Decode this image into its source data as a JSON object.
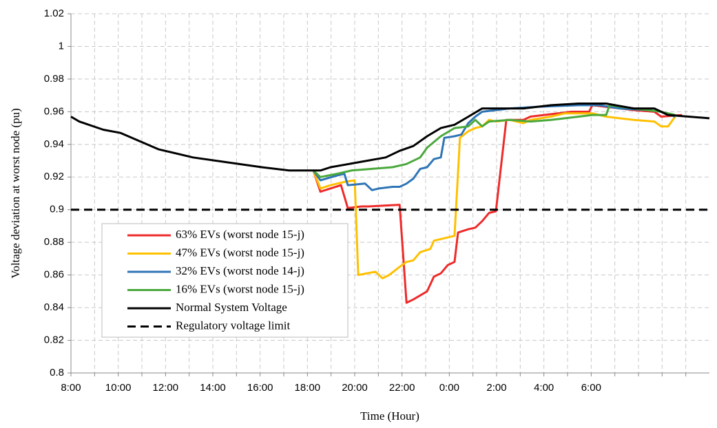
{
  "chart_data": {
    "type": "line",
    "xlabel": "Time (Hour)",
    "ylabel": "Voltage deviation at worst node (pu)",
    "xlim": [
      8,
      35
    ],
    "xticks": [
      {
        "value": 8,
        "label": "8:00"
      },
      {
        "value": 10,
        "label": "10:00"
      },
      {
        "value": 12,
        "label": "12:00"
      },
      {
        "value": 14,
        "label": "14:00"
      },
      {
        "value": 16,
        "label": "16:00"
      },
      {
        "value": 18,
        "label": "18:00"
      },
      {
        "value": 20,
        "label": "20:00"
      },
      {
        "value": 22,
        "label": "22:00"
      },
      {
        "value": 24,
        "label": "0:00"
      },
      {
        "value": 26,
        "label": "2:00"
      },
      {
        "value": 28,
        "label": "4:00"
      },
      {
        "value": 30,
        "label": "6:00"
      }
    ],
    "x_minor_ticks": [
      9,
      11,
      13,
      15,
      17,
      19,
      21,
      23,
      25,
      27,
      29,
      31,
      32,
      33,
      34
    ],
    "ylim": [
      0.8,
      1.02
    ],
    "yticks": [
      0.8,
      0.82,
      0.84,
      0.86,
      0.88,
      0.9,
      0.92,
      0.94,
      0.96,
      0.98,
      1,
      1.02
    ],
    "grid": true,
    "legend": "lower-left",
    "series": [
      {
        "name": "63% EVs (worst node 15-j)",
        "color": "#ee2a2a",
        "x": [
          18.25,
          18.55,
          19.42,
          19.71,
          20.29,
          20.58,
          21.9,
          22.19,
          22.48,
          23.06,
          23.35,
          23.64,
          23.93,
          24.22,
          24.37,
          24.8,
          25.1,
          25.39,
          25.68,
          25.97,
          26.41,
          27.14,
          27.43,
          28.01,
          29.18,
          29.91,
          30.05,
          30.63,
          31.8,
          32.67,
          32.96,
          33.84
        ],
        "values": [
          0.924,
          0.911,
          0.915,
          0.901,
          0.902,
          0.902,
          0.903,
          0.843,
          0.845,
          0.85,
          0.859,
          0.861,
          0.866,
          0.868,
          0.886,
          0.888,
          0.889,
          0.893,
          0.898,
          0.899,
          0.955,
          0.955,
          0.957,
          0.958,
          0.96,
          0.96,
          0.964,
          0.963,
          0.961,
          0.96,
          0.957,
          0.958
        ]
      },
      {
        "name": "47% EVs (worst node 15-j)",
        "color": "#ffc000",
        "x": [
          18.25,
          18.55,
          18.98,
          19.56,
          20.0,
          20.15,
          20.88,
          21.17,
          21.46,
          21.9,
          22.19,
          22.48,
          22.77,
          23.2,
          23.35,
          23.93,
          24.22,
          24.45,
          24.8,
          25.1,
          25.39,
          25.68,
          25.97,
          26.55,
          27.14,
          27.43,
          28.3,
          28.89,
          30.05,
          30.63,
          31.21,
          31.8,
          32.67,
          32.96,
          33.25,
          33.55
        ],
        "values": [
          0.924,
          0.913,
          0.915,
          0.917,
          0.918,
          0.86,
          0.862,
          0.858,
          0.86,
          0.865,
          0.868,
          0.869,
          0.874,
          0.876,
          0.881,
          0.883,
          0.884,
          0.944,
          0.948,
          0.95,
          0.951,
          0.955,
          0.954,
          0.955,
          0.953,
          0.955,
          0.957,
          0.959,
          0.959,
          0.957,
          0.956,
          0.955,
          0.954,
          0.951,
          0.951,
          0.957
        ]
      },
      {
        "name": "32% EVs (worst node 14-j)",
        "color": "#2e75b6",
        "x": [
          18.25,
          18.55,
          19.27,
          19.56,
          19.71,
          20.44,
          20.73,
          21.02,
          21.6,
          21.9,
          22.19,
          22.48,
          22.77,
          23.06,
          23.35,
          23.64,
          23.79,
          24.22,
          24.51,
          24.8,
          25.1,
          25.39,
          25.97,
          26.55,
          27.72,
          29.47,
          30.34,
          31.21,
          32.38,
          32.96,
          33.55
        ],
        "values": [
          0.924,
          0.918,
          0.921,
          0.922,
          0.915,
          0.916,
          0.912,
          0.913,
          0.914,
          0.914,
          0.916,
          0.919,
          0.925,
          0.926,
          0.931,
          0.932,
          0.944,
          0.945,
          0.946,
          0.953,
          0.957,
          0.96,
          0.961,
          0.962,
          0.963,
          0.964,
          0.964,
          0.962,
          0.961,
          0.96,
          0.957
        ]
      },
      {
        "name": "16% EVs (worst node 15-j)",
        "color": "#4aa83c",
        "x": [
          18.25,
          18.55,
          19.27,
          19.86,
          20.73,
          21.6,
          22.19,
          22.77,
          23.06,
          23.64,
          24.22,
          24.8,
          25.1,
          25.39,
          25.68,
          26.55,
          27.43,
          28.3,
          29.47,
          30.05,
          30.63,
          30.78,
          31.8,
          32.96,
          33.55
        ],
        "values": [
          0.924,
          0.92,
          0.922,
          0.924,
          0.925,
          0.926,
          0.928,
          0.932,
          0.938,
          0.945,
          0.95,
          0.951,
          0.955,
          0.951,
          0.954,
          0.955,
          0.954,
          0.955,
          0.957,
          0.958,
          0.958,
          0.964,
          0.962,
          0.96,
          0.958
        ]
      },
      {
        "name": "Normal System Voltage",
        "color": "#000000",
        "x": [
          8,
          8.35,
          9.37,
          10.1,
          11.7,
          13.16,
          14.61,
          16.07,
          17.23,
          18.55,
          18.98,
          20.15,
          21.31,
          21.89,
          22.48,
          23.06,
          23.64,
          24.22,
          24.81,
          25.39,
          27.14,
          28.3,
          29.47,
          30.63,
          31.8,
          32.67,
          33.25,
          34.13,
          35
        ],
        "values": [
          0.957,
          0.954,
          0.949,
          0.947,
          0.937,
          0.932,
          0.929,
          0.926,
          0.924,
          0.924,
          0.926,
          0.929,
          0.932,
          0.936,
          0.939,
          0.945,
          0.95,
          0.952,
          0.957,
          0.962,
          0.962,
          0.964,
          0.965,
          0.965,
          0.962,
          0.962,
          0.958,
          0.957,
          0.956
        ]
      },
      {
        "name": "Regulatory voltage limit",
        "color": "#000000",
        "dashed": true,
        "x": [
          8,
          35
        ],
        "values": [
          0.9,
          0.9
        ]
      }
    ]
  }
}
